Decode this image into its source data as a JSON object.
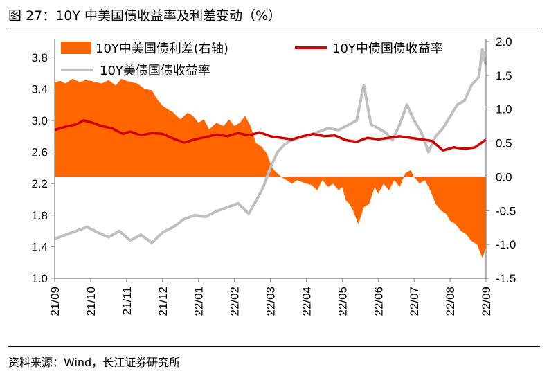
{
  "title": "图 27：10Y 中美国债收益率及利差变动（%）",
  "source": "资料来源：Wind，长江证券研究所",
  "colors": {
    "spread": "#FF6600",
    "china": "#D00000",
    "us": "#BFBFBF",
    "axis": "#808080"
  },
  "chart_data": {
    "type": "area+line",
    "title": "10Y 中美国债收益率及利差变动（%）",
    "categories": [
      "21/09",
      "21/10",
      "21/11",
      "21/12",
      "22/01",
      "22/02",
      "22/03",
      "22/04",
      "22/05",
      "22/06",
      "22/07",
      "22/08",
      "22/09"
    ],
    "left_axis": {
      "min": 1.0,
      "max": 4.0,
      "ticks": [
        "1.0",
        "1.4",
        "1.8",
        "2.2",
        "2.6",
        "3.0",
        "3.4",
        "3.8"
      ]
    },
    "right_axis": {
      "min": -1.5,
      "max": 2.0,
      "ticks": [
        "-1.5",
        "-1.0",
        "-0.5",
        "0.0",
        "0.5",
        "1.0",
        "1.5",
        "2.0"
      ]
    },
    "legend": [
      {
        "name": "10Y中美国债利差(右轴)",
        "kind": "area"
      },
      {
        "name": "10Y中债国债收益率",
        "kind": "line"
      },
      {
        "name": "10Y美债国债收益率",
        "kind": "line"
      }
    ],
    "series": [
      {
        "name": "10Y中美国债利差(右轴)",
        "axis": "right",
        "x": [
          0,
          0.15,
          0.3,
          0.5,
          0.7,
          0.85,
          1.0,
          1.15,
          1.3,
          1.5,
          1.7,
          1.85,
          2.0,
          2.15,
          2.3,
          2.5,
          2.7,
          2.85,
          3.0,
          3.15,
          3.3,
          3.5,
          3.7,
          3.85,
          4.0,
          4.15,
          4.3,
          4.5,
          4.7,
          4.85,
          5.0,
          5.15,
          5.3,
          5.45,
          5.6,
          5.75,
          5.9,
          6.0,
          6.1,
          6.2,
          6.3,
          6.45,
          6.6,
          6.75,
          6.9,
          7.0,
          7.15,
          7.3,
          7.45,
          7.6,
          7.75,
          7.9,
          8.0,
          8.1,
          8.2,
          8.3,
          8.45,
          8.6,
          8.75,
          8.9,
          9.0,
          9.15,
          9.3,
          9.45,
          9.6,
          9.75,
          9.9,
          10.0,
          10.15,
          10.3,
          10.45,
          10.6,
          10.75,
          10.9,
          11.0,
          11.15,
          11.3,
          11.45,
          11.6,
          11.75,
          11.9,
          12.0
        ],
        "values": [
          1.4,
          1.42,
          1.38,
          1.45,
          1.4,
          1.43,
          1.42,
          1.4,
          1.38,
          1.43,
          1.35,
          1.45,
          1.42,
          1.4,
          1.38,
          1.3,
          1.28,
          1.15,
          1.05,
          1.0,
          0.95,
          0.85,
          0.95,
          0.9,
          0.8,
          0.85,
          0.7,
          0.8,
          0.75,
          0.85,
          0.75,
          0.8,
          0.9,
          0.75,
          0.5,
          0.45,
          0.35,
          0.2,
          0.1,
          0.05,
          0.0,
          -0.05,
          -0.1,
          -0.05,
          -0.08,
          -0.1,
          -0.12,
          -0.2,
          -0.05,
          -0.15,
          -0.1,
          -0.2,
          -0.15,
          -0.35,
          -0.4,
          -0.5,
          -0.7,
          -0.45,
          -0.4,
          -0.15,
          -0.25,
          -0.1,
          -0.2,
          -0.05,
          -0.15,
          0.05,
          0.1,
          0.0,
          -0.1,
          -0.05,
          -0.2,
          -0.4,
          -0.5,
          -0.55,
          -0.65,
          -0.7,
          -0.8,
          -0.85,
          -0.95,
          -1.0,
          -1.2,
          -1.05
        ]
      },
      {
        "name": "10Y中债国债收益率",
        "axis": "left",
        "x": [
          0,
          0.3,
          0.6,
          0.8,
          1.0,
          1.3,
          1.6,
          1.9,
          2.1,
          2.4,
          2.7,
          3.0,
          3.3,
          3.6,
          3.9,
          4.2,
          4.5,
          4.8,
          5.1,
          5.4,
          5.7,
          6.0,
          6.3,
          6.6,
          6.9,
          7.2,
          7.5,
          7.8,
          8.1,
          8.4,
          8.7,
          9.0,
          9.3,
          9.6,
          9.9,
          10.2,
          10.5,
          10.8,
          11.1,
          11.4,
          11.7,
          12.0
        ],
        "values": [
          2.88,
          2.92,
          2.95,
          3.0,
          2.98,
          2.93,
          2.9,
          2.83,
          2.86,
          2.81,
          2.84,
          2.83,
          2.77,
          2.72,
          2.76,
          2.79,
          2.82,
          2.8,
          2.84,
          2.81,
          2.85,
          2.8,
          2.78,
          2.76,
          2.8,
          2.83,
          2.8,
          2.81,
          2.75,
          2.73,
          2.78,
          2.76,
          2.78,
          2.8,
          2.78,
          2.76,
          2.74,
          2.62,
          2.66,
          2.64,
          2.66,
          2.76
        ]
      },
      {
        "name": "10Y美债国债收益率",
        "axis": "left",
        "x": [
          0,
          0.3,
          0.6,
          0.9,
          1.2,
          1.5,
          1.8,
          2.1,
          2.4,
          2.7,
          3.0,
          3.3,
          3.6,
          3.9,
          4.2,
          4.5,
          4.8,
          5.1,
          5.4,
          5.6,
          5.8,
          6.0,
          6.2,
          6.4,
          6.6,
          6.8,
          7.0,
          7.3,
          7.6,
          7.9,
          8.2,
          8.4,
          8.6,
          8.8,
          9.0,
          9.2,
          9.4,
          9.6,
          9.8,
          10.0,
          10.2,
          10.4,
          10.6,
          10.8,
          11.0,
          11.2,
          11.4,
          11.6,
          11.8,
          11.9,
          12.0
        ],
        "values": [
          1.5,
          1.55,
          1.6,
          1.65,
          1.58,
          1.52,
          1.6,
          1.48,
          1.55,
          1.45,
          1.58,
          1.65,
          1.75,
          1.8,
          1.78,
          1.85,
          1.9,
          1.95,
          1.82,
          1.98,
          2.15,
          2.4,
          2.6,
          2.7,
          2.75,
          2.78,
          2.8,
          2.85,
          2.9,
          2.88,
          2.95,
          3.0,
          3.45,
          2.95,
          2.9,
          2.85,
          2.75,
          2.95,
          3.2,
          3.0,
          2.85,
          2.6,
          2.8,
          2.9,
          3.05,
          3.2,
          3.25,
          3.45,
          3.55,
          3.9,
          3.7
        ]
      }
    ]
  }
}
